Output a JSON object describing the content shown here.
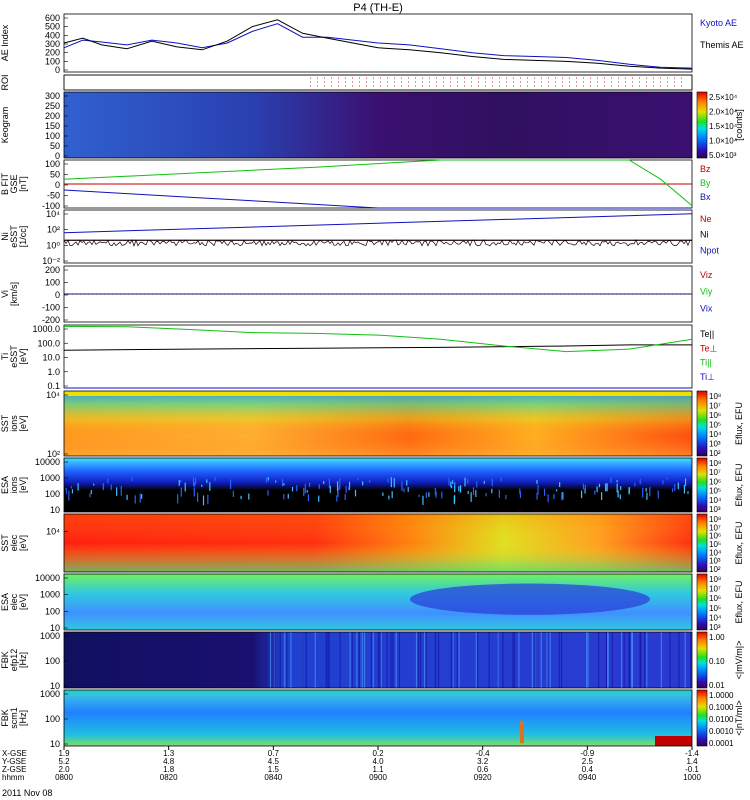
{
  "title": "P4 (TH-E)",
  "date": "2011 Nov 08",
  "colors": {
    "blue": "#1010c0",
    "red": "#c00000",
    "green": "#10c010",
    "black": "#000000"
  },
  "chart_data": [
    {
      "type": "line",
      "ylabel": [
        "AE Index"
      ],
      "yticks": [
        "600",
        "500",
        "400",
        "300",
        "200",
        "100",
        "0"
      ],
      "ylim": [
        0,
        600
      ],
      "series": [
        {
          "name": "Kyoto AE",
          "color": "#1010c0",
          "x": [
            0,
            0.03,
            0.06,
            0.1,
            0.14,
            0.18,
            0.22,
            0.26,
            0.3,
            0.34,
            0.38,
            0.42,
            0.46,
            0.5,
            0.55,
            0.6,
            0.65,
            0.7,
            0.75,
            0.8,
            0.85,
            0.9,
            0.95,
            1.0
          ],
          "y": [
            250,
            330,
            310,
            280,
            330,
            300,
            250,
            300,
            420,
            500,
            360,
            360,
            330,
            300,
            280,
            240,
            200,
            170,
            160,
            150,
            120,
            80,
            50,
            40
          ]
        },
        {
          "name": "Themis AE",
          "color": "#000000",
          "x": [
            0,
            0.03,
            0.06,
            0.1,
            0.14,
            0.18,
            0.22,
            0.26,
            0.3,
            0.34,
            0.38,
            0.42,
            0.46,
            0.5,
            0.55,
            0.6,
            0.65,
            0.7,
            0.75,
            0.8,
            0.85,
            0.9,
            0.95,
            1.0
          ],
          "y": [
            300,
            350,
            280,
            240,
            320,
            260,
            230,
            320,
            470,
            540,
            400,
            350,
            300,
            250,
            230,
            200,
            160,
            130,
            120,
            110,
            90,
            60,
            40,
            30
          ]
        }
      ]
    },
    {
      "type": "line",
      "ylabel": [
        "ROI"
      ],
      "yticks": []
    },
    {
      "type": "heatmap",
      "ylabel": [
        "Keogram"
      ],
      "yticks": [
        "300",
        "250",
        "200",
        "150",
        "100",
        "50",
        "0"
      ],
      "ylim": [
        0,
        300
      ],
      "colorbar": {
        "label": "[counts]",
        "ticks": [
          "2.5×10⁴",
          "2.0×10⁴",
          "1.5×10⁴",
          "1.0×10⁴",
          "5.0×10³"
        ]
      }
    },
    {
      "type": "line",
      "ylabel": [
        "B FIT",
        "GSE",
        "[nT]"
      ],
      "yticks": [
        "100",
        "50",
        "0",
        "-50",
        "-100"
      ],
      "ylim": [
        -100,
        100
      ],
      "series": [
        {
          "name": "Bz",
          "color": "#c00000",
          "x": [
            0,
            1
          ],
          "y": [
            0,
            0
          ]
        },
        {
          "name": "By",
          "color": "#10c010",
          "x": [
            0,
            0.2,
            0.4,
            0.6,
            0.65,
            0.85,
            0.9,
            0.95,
            1.0
          ],
          "y": [
            20,
            45,
            70,
            100,
            100,
            100,
            100,
            20,
            -90
          ]
        },
        {
          "name": "Bx",
          "color": "#1010c0",
          "x": [
            0,
            0.1,
            0.2,
            0.3,
            0.4,
            0.5,
            1.0
          ],
          "y": [
            -25,
            -40,
            -55,
            -70,
            -85,
            -100,
            -100
          ]
        }
      ]
    },
    {
      "type": "line",
      "ylabel": [
        "Ni",
        "eSST",
        "[1/cc]"
      ],
      "yticks": [
        "10⁴",
        "10²",
        "10⁰",
        "10⁻²"
      ],
      "series": [
        {
          "name": "Ne",
          "color": "#c00000",
          "x": [
            0,
            1
          ],
          "y": [
            0.5,
            0.5
          ]
        },
        {
          "name": "Ni",
          "color": "#000000",
          "x": [
            0,
            1
          ],
          "y": [
            0.5,
            0.5
          ]
        },
        {
          "name": "Npot",
          "color": "#1010c0",
          "x": [
            0,
            1
          ],
          "y": [
            1.5,
            4
          ]
        }
      ]
    },
    {
      "type": "line",
      "ylabel": [
        "Vi",
        "[km/s]"
      ],
      "yticks": [
        "200",
        "100",
        "0",
        "-100",
        "-200"
      ],
      "ylim": [
        -250,
        250
      ],
      "series": [
        {
          "name": "Viz",
          "color": "#c00000",
          "x": [
            0,
            1
          ],
          "y": [
            0,
            0
          ]
        },
        {
          "name": "Viy",
          "color": "#10c010",
          "x": [
            0,
            1
          ],
          "y": [
            0,
            0
          ]
        },
        {
          "name": "Vix",
          "color": "#1010c0",
          "x": [
            0,
            1
          ],
          "y": [
            0,
            0
          ]
        }
      ]
    },
    {
      "type": "line",
      "ylabel": [
        "Ti",
        "eSST",
        "[eV]"
      ],
      "yticks": [
        "1000.0",
        "100.0",
        "10.0",
        "1.0",
        "0.1"
      ],
      "series": [
        {
          "name": "Te||",
          "color": "#000000",
          "x": [
            0,
            0.2,
            0.4,
            0.6,
            0.8,
            0.9,
            1.0
          ],
          "y": [
            50,
            60,
            70,
            80,
            100,
            120,
            120
          ]
        },
        {
          "name": "Te⊥",
          "color": "#c00000",
          "x": [
            0,
            1
          ],
          "y": [
            0,
            0
          ]
        },
        {
          "name": "Ti||",
          "color": "#10c010",
          "x": [
            0,
            0.1,
            0.2,
            0.3,
            0.4,
            0.5,
            0.6,
            0.7,
            0.8,
            0.9,
            1.0
          ],
          "y": [
            2500,
            2400,
            1500,
            900,
            800,
            600,
            300,
            100,
            40,
            60,
            300
          ]
        },
        {
          "name": "Ti⊥",
          "color": "#1010c0",
          "x": [
            0,
            1
          ],
          "y": [
            0,
            0
          ]
        }
      ]
    },
    {
      "type": "heatmap",
      "ylabel": [
        "SST",
        "ions",
        "[eV]"
      ],
      "yticks": [
        "10⁴",
        "10²"
      ],
      "colorbar": {
        "label": "Eflux, EFU",
        "ticks": [
          "10⁸",
          "10⁷",
          "10⁶",
          "10⁵",
          "10⁴",
          "10³",
          "10²"
        ]
      }
    },
    {
      "type": "heatmap",
      "ylabel": [
        "ESA",
        "ions",
        "[eV]"
      ],
      "yticks": [
        "10000",
        "1000",
        "100",
        "10"
      ],
      "colorbar": {
        "label": "Eflux, EFU",
        "ticks": [
          "10⁸",
          "10⁷",
          "10⁶",
          "10⁵",
          "10⁴",
          "10³"
        ]
      }
    },
    {
      "type": "heatmap",
      "ylabel": [
        "SST",
        "elec",
        "[eV]"
      ],
      "yticks": [
        "10⁴"
      ],
      "colorbar": {
        "label": "Eflux, EFU",
        "ticks": [
          "10⁸",
          "10⁷",
          "10⁶",
          "10⁵",
          "10⁴",
          "10³",
          "10²"
        ]
      }
    },
    {
      "type": "heatmap",
      "ylabel": [
        "ESA",
        "elec",
        "[eV]"
      ],
      "yticks": [
        "10000",
        "1000",
        "100",
        "10"
      ],
      "colorbar": {
        "label": "Eflux, EFU",
        "ticks": [
          "10⁸",
          "10⁷",
          "10⁶",
          "10⁵",
          "10⁴",
          "10³"
        ]
      }
    },
    {
      "type": "heatmap",
      "ylabel": [
        "FBK",
        "efp12",
        "[Hz]"
      ],
      "yticks": [
        "1000",
        "100",
        "10"
      ],
      "colorbar": {
        "label": "<|mV/m|>",
        "ticks": [
          "1.00",
          "0.10",
          "0.01"
        ]
      }
    },
    {
      "type": "heatmap",
      "ylabel": [
        "FBK",
        "scm1",
        "[Hz]"
      ],
      "yticks": [
        "1000",
        "100",
        "10"
      ],
      "colorbar": {
        "label": "<|nT/ml>",
        "ticks": [
          "1.0000",
          "0.1000",
          "0.0100",
          "0.0010",
          "0.0001"
        ]
      }
    }
  ],
  "x_axis": {
    "row_labels": [
      "X-GSE",
      "Y-GSE",
      "Z-GSE",
      "hhmm"
    ],
    "columns": [
      {
        "x": "1.9",
        "y": "5.2",
        "z": "2.0",
        "t": "0800"
      },
      {
        "x": "1.3",
        "y": "4.8",
        "z": "1.8",
        "t": "0820"
      },
      {
        "x": "0.7",
        "y": "4.5",
        "z": "1.5",
        "t": "0840"
      },
      {
        "x": "0.2",
        "y": "4.0",
        "z": "1.1",
        "t": "0900"
      },
      {
        "x": "-0.4",
        "y": "3.2",
        "z": "0.6",
        "t": "0920"
      },
      {
        "x": "-0.9",
        "y": "2.5",
        "z": "0.4",
        "t": "0940"
      },
      {
        "x": "-1.4",
        "y": "1.4",
        "z": "-0.1",
        "t": "1000"
      }
    ]
  }
}
